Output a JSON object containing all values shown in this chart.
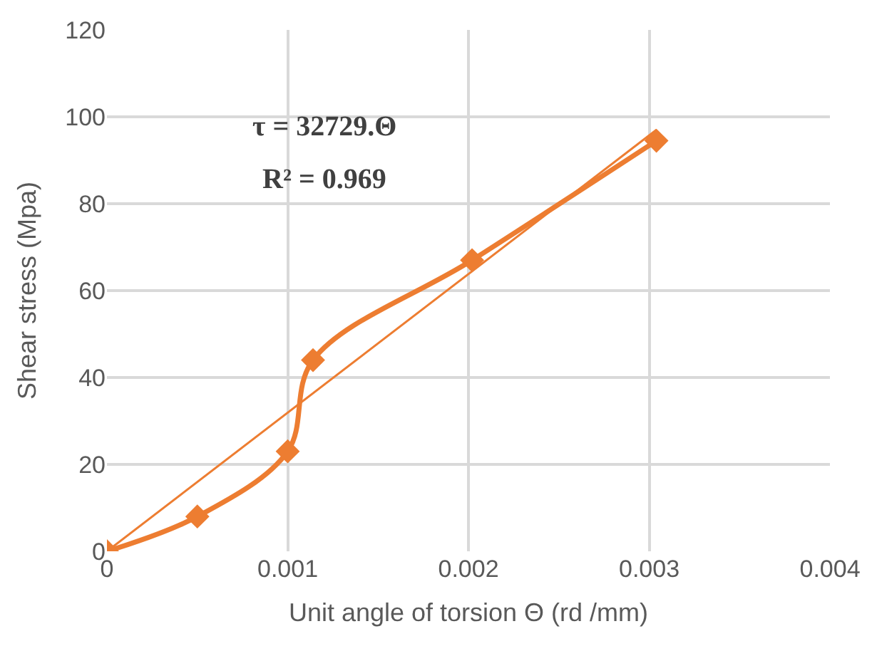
{
  "chart_data": {
    "type": "line",
    "xlabel": "Unit angle of torsion Θ (rd /mm)",
    "ylabel": "Shear stress (Mpa)",
    "annotations": [
      "τ = 32729.Θ",
      "R² = 0.969"
    ],
    "series": [
      {
        "color": "#ed7d31",
        "marker": "diamond",
        "x": [
          0,
          0.0005,
          0.001,
          0.00114,
          0.00202,
          0.00304
        ],
        "values": [
          0,
          8,
          23,
          44,
          67,
          94.5
        ]
      },
      {
        "type": "line",
        "color": "#ed7d31",
        "marker": "none",
        "x": [
          0,
          0.00304
        ],
        "values": [
          0,
          97
        ]
      }
    ],
    "xlim": [
      0,
      0.004
    ],
    "xticks": [
      0,
      0.001,
      0.002,
      0.003,
      0.004
    ],
    "ylim": [
      0,
      120
    ],
    "yticks": [
      0,
      20,
      40,
      60,
      80,
      100,
      120
    ],
    "grid": true
  }
}
